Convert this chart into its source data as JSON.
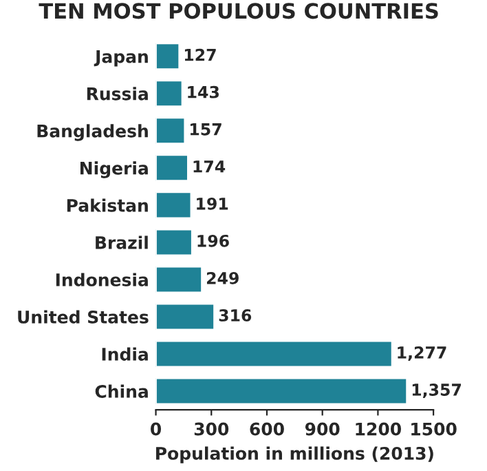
{
  "chart_data": {
    "type": "bar",
    "orientation": "horizontal",
    "title": "TEN MOST POPULOUS COUNTRIES",
    "xlabel": "Population in millions (2013)",
    "categories": [
      "Japan",
      "Russia",
      "Bangladesh",
      "Nigeria",
      "Pakistan",
      "Brazil",
      "Indonesia",
      "United States",
      "India",
      "China"
    ],
    "values": [
      127,
      143,
      157,
      174,
      191,
      196,
      249,
      316,
      1277,
      1357
    ],
    "value_labels": [
      "127",
      "143",
      "157",
      "174",
      "191",
      "196",
      "249",
      "316",
      "1,277",
      "1,357"
    ],
    "color": "#1f8296",
    "xlim": [
      0,
      1500
    ],
    "xticks": [
      0,
      300,
      600,
      900,
      1200,
      1500
    ],
    "grid": false,
    "legend": false
  }
}
